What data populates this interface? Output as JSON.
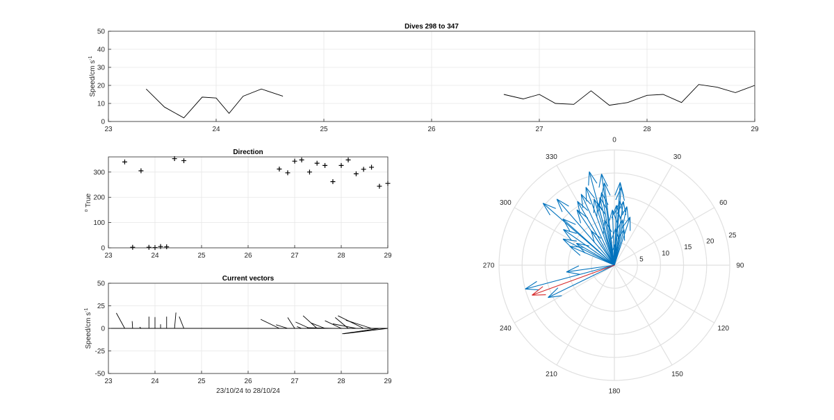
{
  "chart_data": [
    {
      "id": "speed",
      "type": "line",
      "title": "Dives 298 to 347",
      "ylabel": "Speed/cm s",
      "ylabel_sup": "-1",
      "xlim": [
        23,
        29
      ],
      "ylim": [
        0,
        50
      ],
      "xticks": [
        23,
        24,
        25,
        26,
        27,
        28,
        29
      ],
      "yticks": [
        0,
        10,
        20,
        30,
        40,
        50
      ],
      "grid": true,
      "series": [
        {
          "color": "#000000",
          "segments": [
            [
              [
                23.35,
                18
              ],
              [
                23.52,
                8
              ],
              [
                23.7,
                2
              ],
              [
                23.87,
                13.5
              ],
              [
                24.0,
                13
              ],
              [
                24.12,
                4.5
              ],
              [
                24.25,
                14
              ],
              [
                24.42,
                18
              ],
              [
                24.62,
                14
              ]
            ],
            [
              [
                26.67,
                15
              ],
              [
                26.85,
                12.5
              ],
              [
                27.0,
                15
              ],
              [
                27.15,
                10
              ],
              [
                27.32,
                9.5
              ],
              [
                27.48,
                17
              ],
              [
                27.65,
                9
              ],
              [
                27.82,
                10.5
              ],
              [
                28.0,
                14.5
              ],
              [
                28.15,
                15
              ],
              [
                28.32,
                10.5
              ],
              [
                28.48,
                20.5
              ],
              [
                28.65,
                19
              ],
              [
                28.82,
                16
              ],
              [
                29.0,
                20
              ]
            ]
          ]
        }
      ]
    },
    {
      "id": "direction",
      "type": "scatter",
      "title": "Direction",
      "ylabel": "True",
      "ylabel_sup": "o",
      "xlim": [
        23,
        29
      ],
      "ylim": [
        0,
        360
      ],
      "xticks": [
        23,
        24,
        25,
        26,
        27,
        28,
        29
      ],
      "yticks": [
        0,
        100,
        200,
        300
      ],
      "grid": true,
      "marker": "+",
      "color": "#000000",
      "points": [
        [
          23.35,
          340
        ],
        [
          23.52,
          2
        ],
        [
          23.7,
          305
        ],
        [
          23.87,
          2
        ],
        [
          24.0,
          1
        ],
        [
          24.12,
          5
        ],
        [
          24.25,
          4
        ],
        [
          24.42,
          353
        ],
        [
          24.62,
          345
        ],
        [
          26.67,
          312
        ],
        [
          26.85,
          297
        ],
        [
          27.0,
          343
        ],
        [
          27.15,
          348
        ],
        [
          27.32,
          300
        ],
        [
          27.48,
          335
        ],
        [
          27.65,
          326
        ],
        [
          27.82,
          262
        ],
        [
          28.0,
          326
        ],
        [
          28.15,
          348
        ],
        [
          28.32,
          293
        ],
        [
          28.48,
          311
        ],
        [
          28.65,
          319
        ],
        [
          28.82,
          244
        ],
        [
          29.0,
          255
        ]
      ]
    },
    {
      "id": "vectors",
      "type": "vector",
      "title": "Current vectors",
      "ylabel": "Speed/cm s",
      "ylabel_sup": "-1",
      "xlabel": "23/10/24 to 28/10/24",
      "xlim": [
        23,
        29
      ],
      "ylim": [
        -50,
        50
      ],
      "xticks": [
        23,
        24,
        25,
        26,
        27,
        28,
        29
      ],
      "yticks": [
        -50,
        -25,
        0,
        25,
        50
      ],
      "grid": true,
      "color": "#000000",
      "vectors": [
        [
          23.35,
          -0.18,
          17
        ],
        [
          23.52,
          -0.01,
          8
        ],
        [
          23.7,
          -0.03,
          1.5
        ],
        [
          23.87,
          0.0,
          13
        ],
        [
          24.0,
          0.0,
          12.5
        ],
        [
          24.12,
          0.0,
          4.5
        ],
        [
          24.25,
          0.0,
          13
        ],
        [
          24.42,
          0.03,
          17.5
        ],
        [
          24.62,
          -0.1,
          13
        ],
        [
          26.67,
          -0.4,
          10
        ],
        [
          26.85,
          -0.25,
          4
        ],
        [
          27.0,
          -0.15,
          12
        ],
        [
          27.15,
          -0.1,
          2
        ],
        [
          27.32,
          -0.3,
          7
        ],
        [
          27.48,
          -0.3,
          14
        ],
        [
          27.65,
          -0.3,
          6
        ],
        [
          27.82,
          -0.55,
          0.7
        ],
        [
          28.0,
          -0.35,
          8.5
        ],
        [
          28.15,
          -0.28,
          12
        ],
        [
          28.32,
          -0.5,
          5
        ],
        [
          28.48,
          -0.55,
          14
        ],
        [
          28.65,
          -0.55,
          9
        ],
        [
          28.82,
          -0.8,
          -6
        ],
        [
          29.0,
          -0.95,
          -6
        ]
      ]
    },
    {
      "id": "polar",
      "type": "polar",
      "rlim": [
        0,
        25
      ],
      "rticks": [
        5,
        10,
        15,
        20,
        25
      ],
      "theta_ticks": [
        0,
        30,
        60,
        90,
        120,
        150,
        180,
        210,
        240,
        270,
        300,
        330
      ],
      "grid": true,
      "vector_color": "#0072BD",
      "mean_color": "#D62728",
      "vectors": [
        [
          340,
          18
        ],
        [
          2,
          8
        ],
        [
          305,
          13.5
        ],
        [
          2,
          13
        ],
        [
          1,
          4.5
        ],
        [
          5,
          14
        ],
        [
          4,
          18
        ],
        [
          353,
          18
        ],
        [
          345,
          14
        ],
        [
          312,
          15
        ],
        [
          297,
          12.5
        ],
        [
          343,
          15
        ],
        [
          348,
          10
        ],
        [
          300,
          9.5
        ],
        [
          335,
          17
        ],
        [
          326,
          9
        ],
        [
          262,
          10.5
        ],
        [
          326,
          14.5
        ],
        [
          348,
          15
        ],
        [
          293,
          10.5
        ],
        [
          311,
          20.5
        ],
        [
          319,
          19
        ],
        [
          244,
          16
        ],
        [
          255,
          20
        ],
        [
          358,
          12
        ],
        [
          350,
          16
        ],
        [
          10,
          10
        ],
        [
          15,
          8
        ],
        [
          8,
          14
        ],
        [
          18,
          11
        ],
        [
          330,
          16
        ],
        [
          352,
          20
        ],
        [
          345,
          21
        ],
        [
          5,
          17
        ],
        [
          12,
          13
        ]
      ],
      "mean_vector": [
        250,
        19
      ]
    }
  ]
}
